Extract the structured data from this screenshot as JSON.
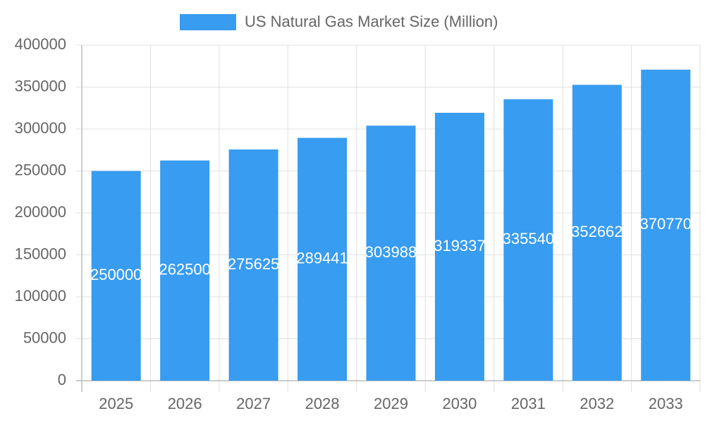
{
  "chart_data": {
    "type": "bar",
    "categories": [
      "2025",
      "2026",
      "2027",
      "2028",
      "2029",
      "2030",
      "2031",
      "2032",
      "2033"
    ],
    "series": [
      {
        "name": "US Natural Gas Market Size (Million)",
        "color": "#389cf0",
        "values": [
          250000,
          262500,
          275625,
          289441,
          303988,
          319337,
          335540,
          352662,
          370770
        ]
      }
    ],
    "ylim": [
      0,
      400000
    ],
    "yticks": [
      0,
      50000,
      100000,
      150000,
      200000,
      250000,
      300000,
      350000,
      400000
    ],
    "grid": true,
    "legend": "top"
  }
}
